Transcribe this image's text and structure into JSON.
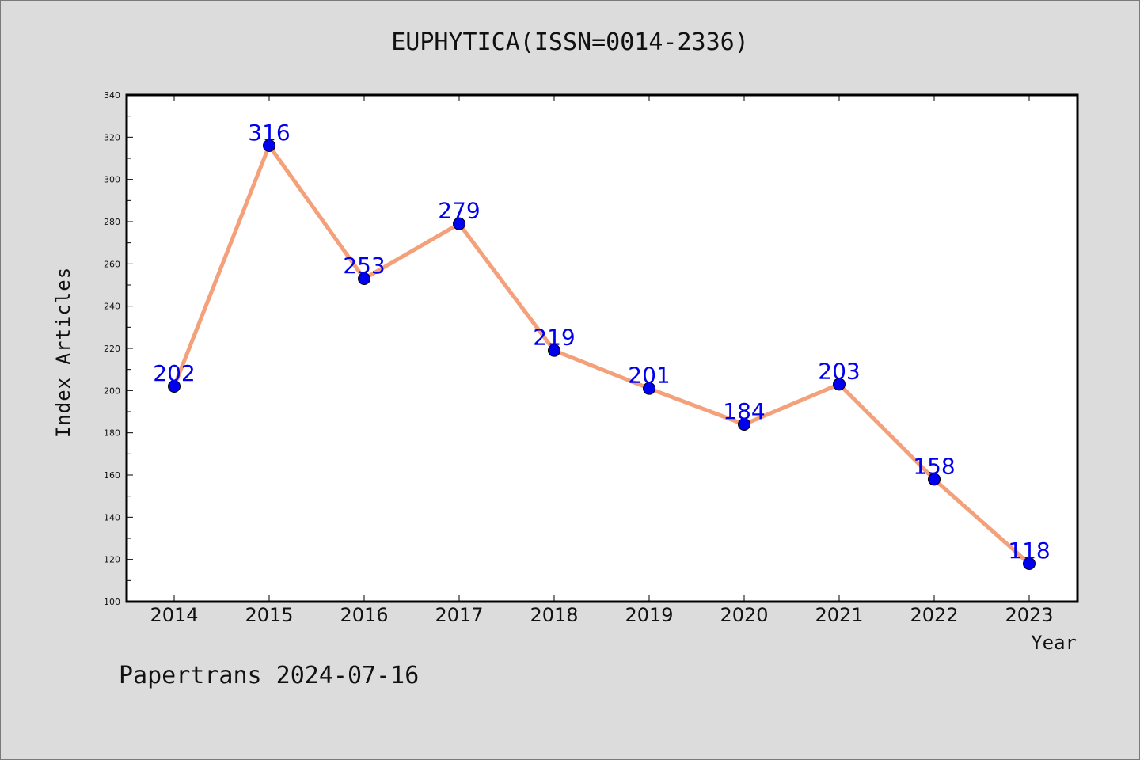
{
  "chart_data": {
    "type": "line",
    "title": "EUPHYTICA(ISSN=0014-2336)",
    "xlabel": "Year",
    "ylabel": "Index Articles",
    "categories": [
      "2014",
      "2015",
      "2016",
      "2017",
      "2018",
      "2019",
      "2020",
      "2021",
      "2022",
      "2023"
    ],
    "series": [
      {
        "values": [
          202,
          316,
          253,
          279,
          219,
          201,
          184,
          203,
          158,
          118
        ],
        "line_color": "#f4a07a",
        "marker_color": "#0000ee",
        "label_color": "#0000ee"
      }
    ],
    "ylim": [
      100,
      340
    ],
    "yticks": [
      100,
      120,
      140,
      160,
      180,
      200,
      220,
      240,
      260,
      280,
      300,
      320,
      340
    ],
    "grid": false,
    "data_labels": true
  },
  "footer": {
    "text": "Papertrans 2024-07-16"
  },
  "colors": {
    "background": "#dcdcdc",
    "plot_background": "#ffffff",
    "axis": "#000000"
  }
}
